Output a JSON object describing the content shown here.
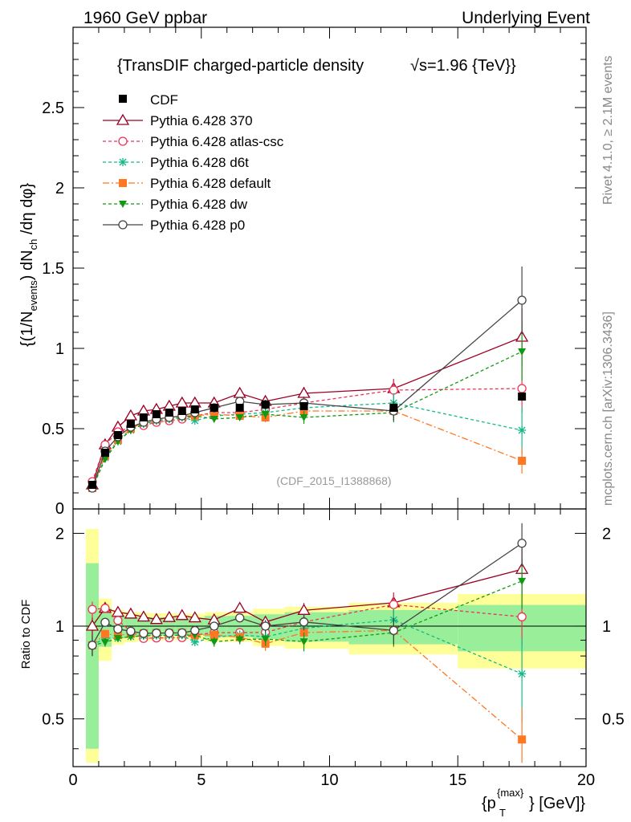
{
  "header": {
    "left": "1960 GeV ppbar",
    "right": "Underlying Event"
  },
  "side_labels": {
    "rivet": "Rivet 4.1.0, ≥ 2.1M events",
    "mcplots": "mcplots.cern.ch [arXiv:1306.3436]"
  },
  "chart_data": {
    "type": "line",
    "title": "{TransDIF charged-particle density",
    "title_sqrt": "√s=1.96 {TeV}}",
    "analysis_id": "(CDF_2015_I1388868)",
    "xlabel": "{p_T^{max}} [GeV]",
    "ylabel": "{(1/N_events) dN_ch/dη dφ}",
    "ratio_ylabel": "Ratio to CDF",
    "xlim": [
      0,
      20
    ],
    "ylim": [
      0,
      3.0
    ],
    "ratio_ylim": [
      0.35,
      2.4
    ],
    "x_ticks": [
      0,
      5,
      10,
      15,
      20
    ],
    "y_ticks": [
      0.5,
      1,
      1.5,
      2,
      2.5
    ],
    "y_tick_labels": [
      "0.5",
      "1",
      "1.5",
      "2",
      "2.5"
    ],
    "y_zero_label": "0",
    "ratio_ticks": [
      0.5,
      1,
      2
    ],
    "ratio_tick_labels": [
      "0.5",
      "1",
      "2"
    ],
    "x_tick_labels": [
      "0",
      "5",
      "10",
      "15",
      "20"
    ],
    "x": [
      0.75,
      1.25,
      1.75,
      2.25,
      2.75,
      3.25,
      3.75,
      4.25,
      4.75,
      5.5,
      6.5,
      7.5,
      9.0,
      12.5,
      17.5
    ],
    "data": {
      "name": "CDF",
      "values": [
        0.15,
        0.35,
        0.46,
        0.53,
        0.57,
        0.59,
        0.6,
        0.61,
        0.62,
        0.63,
        0.63,
        0.65,
        0.64,
        0.63,
        0.7
      ],
      "band_inner": [
        0.09,
        0.05,
        0.04,
        0.04,
        0.04,
        0.04,
        0.04,
        0.04,
        0.04,
        0.05,
        0.05,
        0.06,
        0.07,
        0.08,
        0.12
      ],
      "band_outer": [
        0.16,
        0.08,
        0.06,
        0.06,
        0.06,
        0.06,
        0.06,
        0.06,
        0.06,
        0.07,
        0.07,
        0.09,
        0.1,
        0.12,
        0.19
      ]
    },
    "series": [
      {
        "name": "Pythia 6.428 370",
        "color": "#990022",
        "dash": "",
        "marker": "triangle-open",
        "values": [
          0.15,
          0.4,
          0.51,
          0.58,
          0.61,
          0.62,
          0.64,
          0.66,
          0.66,
          0.66,
          0.72,
          0.67,
          0.72,
          0.75,
          1.07
        ],
        "errors": [
          0.01,
          0.01,
          0.01,
          0.01,
          0.01,
          0.01,
          0.01,
          0.01,
          0.01,
          0.02,
          0.02,
          0.03,
          0.04,
          0.06,
          0.18
        ]
      },
      {
        "name": "Pythia 6.428 atlas-csc",
        "color": "#ee3355",
        "dash": "4,3",
        "marker": "circle-open",
        "values": [
          0.17,
          0.4,
          0.48,
          0.51,
          0.52,
          0.54,
          0.55,
          0.56,
          0.58,
          0.6,
          0.6,
          0.62,
          0.66,
          0.74,
          0.75
        ],
        "errors": [
          0.01,
          0.01,
          0.01,
          0.01,
          0.01,
          0.01,
          0.01,
          0.01,
          0.01,
          0.02,
          0.02,
          0.03,
          0.04,
          0.07,
          0.15
        ]
      },
      {
        "name": "Pythia 6.428 d6t",
        "color": "#11bb88",
        "dash": "4,3",
        "marker": "star",
        "values": [
          0.13,
          0.32,
          0.42,
          0.49,
          0.53,
          0.55,
          0.56,
          0.57,
          0.55,
          0.58,
          0.59,
          0.6,
          0.63,
          0.66,
          0.49
        ],
        "errors": [
          0.01,
          0.01,
          0.01,
          0.01,
          0.01,
          0.01,
          0.01,
          0.01,
          0.01,
          0.02,
          0.02,
          0.03,
          0.04,
          0.06,
          0.15
        ]
      },
      {
        "name": "Pythia 6.428 default",
        "color": "#ff7722",
        "dash": "8,3,2,3",
        "marker": "square",
        "values": [
          0.13,
          0.33,
          0.43,
          0.5,
          0.54,
          0.56,
          0.57,
          0.58,
          0.58,
          0.59,
          0.58,
          0.57,
          0.61,
          0.61,
          0.3
        ],
        "errors": [
          0.01,
          0.01,
          0.01,
          0.01,
          0.01,
          0.01,
          0.01,
          0.01,
          0.01,
          0.02,
          0.02,
          0.03,
          0.04,
          0.06,
          0.08
        ]
      },
      {
        "name": "Pythia 6.428 dw",
        "color": "#119911",
        "dash": "4,3",
        "marker": "triangle-down",
        "values": [
          0.13,
          0.31,
          0.42,
          0.49,
          0.53,
          0.55,
          0.56,
          0.57,
          0.58,
          0.56,
          0.57,
          0.59,
          0.57,
          0.6,
          0.98
        ],
        "errors": [
          0.01,
          0.01,
          0.01,
          0.01,
          0.01,
          0.01,
          0.01,
          0.01,
          0.01,
          0.02,
          0.02,
          0.03,
          0.04,
          0.06,
          0.18
        ]
      },
      {
        "name": "Pythia 6.428 p0",
        "color": "#444444",
        "dash": "",
        "marker": "circle-open",
        "values": [
          0.13,
          0.36,
          0.45,
          0.51,
          0.54,
          0.56,
          0.57,
          0.58,
          0.6,
          0.63,
          0.67,
          0.65,
          0.66,
          0.61,
          1.3
        ],
        "errors": [
          0.01,
          0.01,
          0.01,
          0.01,
          0.01,
          0.01,
          0.01,
          0.01,
          0.01,
          0.02,
          0.02,
          0.03,
          0.04,
          0.06,
          0.21
        ]
      }
    ]
  }
}
